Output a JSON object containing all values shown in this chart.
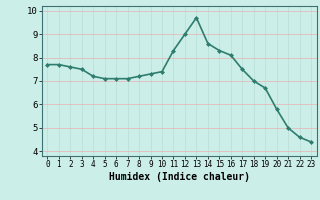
{
  "x": [
    0,
    1,
    2,
    3,
    4,
    5,
    6,
    7,
    8,
    9,
    10,
    11,
    12,
    13,
    14,
    15,
    16,
    17,
    18,
    19,
    20,
    21,
    22,
    23
  ],
  "y": [
    7.7,
    7.7,
    7.6,
    7.5,
    7.2,
    7.1,
    7.1,
    7.1,
    7.2,
    7.3,
    7.4,
    8.3,
    9.0,
    9.7,
    8.6,
    8.3,
    8.1,
    7.5,
    7.0,
    6.7,
    5.8,
    5.0,
    4.6,
    4.4
  ],
  "line_color": "#2e7d6e",
  "marker": "D",
  "marker_size": 2.0,
  "line_width": 1.2,
  "xlabel": "Humidex (Indice chaleur)",
  "xlabel_fontsize": 7,
  "ylabel": "",
  "title": "",
  "xlim": [
    -0.5,
    23.5
  ],
  "ylim": [
    3.8,
    10.2
  ],
  "yticks": [
    4,
    5,
    6,
    7,
    8,
    9,
    10
  ],
  "xticks": [
    0,
    1,
    2,
    3,
    4,
    5,
    6,
    7,
    8,
    9,
    10,
    11,
    12,
    13,
    14,
    15,
    16,
    17,
    18,
    19,
    20,
    21,
    22,
    23
  ],
  "xtick_fontsize": 5.5,
  "ytick_fontsize": 6.5,
  "bg_color": "#cceee8",
  "grid_color_v": "#b8dcd8",
  "grid_color_h": "#e8b0b0",
  "spine_color": "#3d7070"
}
